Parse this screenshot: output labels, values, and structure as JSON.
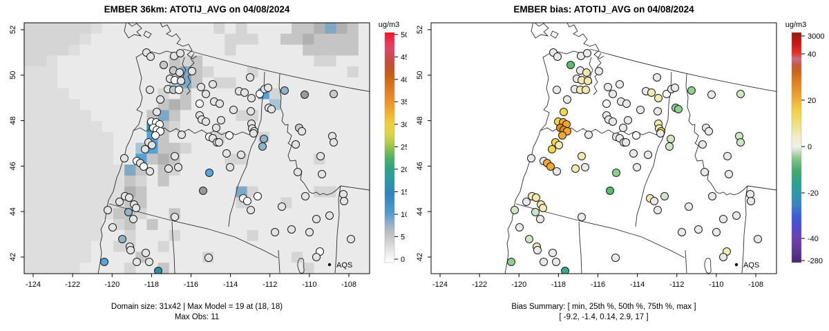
{
  "page": {
    "background": "#ffffff"
  },
  "legend": {
    "aqs_label": "AQS"
  },
  "chart_data": {
    "type": "map-scatter-pair",
    "axes": {
      "x_ticks": [
        "-124",
        "-122",
        "-120",
        "-118",
        "-116",
        "-114",
        "-112",
        "-110",
        "-108"
      ],
      "y_ticks": [
        "52",
        "50",
        "48",
        "46",
        "44",
        "42"
      ],
      "x_range": [
        -124,
        -108
      ],
      "y_range": [
        42,
        52
      ],
      "grid": false
    },
    "panels": [
      {
        "id": "model",
        "title": "EMBER 36km: ATOTIJ_AVG on 04/08/2024",
        "caption_line1": "Domain size: 31x42 | Max Model = 19 at (18, 18)",
        "caption_line2": "Max Obs: 11",
        "has_raster": true,
        "marker_field": 2,
        "colorbar": {
          "title": "ug/m3",
          "ticks": [
            {
              "label": "0",
              "f": 0.015
            },
            {
              "label": "5",
              "f": 0.113
            },
            {
              "label": "10",
              "f": 0.21
            },
            {
              "label": "15",
              "f": 0.308
            },
            {
              "label": "20",
              "f": 0.406
            },
            {
              "label": "25",
              "f": 0.503
            },
            {
              "label": "30",
              "f": 0.601
            },
            {
              "label": "35",
              "f": 0.699
            },
            {
              "label": "40",
              "f": 0.796
            },
            {
              "label": "45",
              "f": 0.894
            },
            {
              "label": "50",
              "f": 0.991
            }
          ],
          "stops": [
            {
              "f": 0,
              "c": "#ffffff"
            },
            {
              "f": 0.04,
              "c": "#ececec"
            },
            {
              "f": 0.1,
              "c": "#cccccc"
            },
            {
              "f": 0.14,
              "c": "#b0bcc4"
            },
            {
              "f": 0.18,
              "c": "#86abc9"
            },
            {
              "f": 0.21,
              "c": "#569dd2"
            },
            {
              "f": 0.26,
              "c": "#3e8ec8"
            },
            {
              "f": 0.3,
              "c": "#3083bd"
            },
            {
              "f": 0.33,
              "c": "#2c90b0"
            },
            {
              "f": 0.37,
              "c": "#2d9d9b"
            },
            {
              "f": 0.41,
              "c": "#2ea486"
            },
            {
              "f": 0.45,
              "c": "#49ae69"
            },
            {
              "f": 0.49,
              "c": "#84bd53"
            },
            {
              "f": 0.52,
              "c": "#b2cb4a"
            },
            {
              "f": 0.56,
              "c": "#dcd448"
            },
            {
              "f": 0.6,
              "c": "#eed03c"
            },
            {
              "f": 0.63,
              "c": "#f0bd35"
            },
            {
              "f": 0.67,
              "c": "#efa42d"
            },
            {
              "f": 0.71,
              "c": "#e98d26"
            },
            {
              "f": 0.75,
              "c": "#e07c20"
            },
            {
              "f": 0.79,
              "c": "#d26a1b"
            },
            {
              "f": 0.81,
              "c": "#c86018"
            },
            {
              "f": 0.85,
              "c": "#c1512d"
            },
            {
              "f": 0.89,
              "c": "#cb4850"
            },
            {
              "f": 0.93,
              "c": "#de4568"
            },
            {
              "f": 0.96,
              "c": "#ec3455"
            },
            {
              "f": 1,
              "c": "#fa0f20"
            }
          ]
        }
      },
      {
        "id": "bias",
        "title": "EMBER bias: ATOTIJ_AVG on 04/08/2024",
        "caption_line1": "Bias Summary: [ min, 25th %, 50th %, 75th %, max ]",
        "caption_line2": "[ -9.2,  -1.4,  0.14,  2.9,  17 ]",
        "has_raster": false,
        "marker_field": 3,
        "bias_summary": [
          -9.2,
          -1.4,
          0.14,
          2.9,
          17
        ],
        "colorbar": {
          "title": "ug/m3",
          "ticks": [
            {
              "label": "-280",
              "f": 0.009
            },
            {
              "label": "-40",
              "f": 0.105
            },
            {
              "label": "-20",
              "f": 0.303
            },
            {
              "label": "0",
              "f": 0.504
            },
            {
              "label": "20",
              "f": 0.706
            },
            {
              "label": "40",
              "f": 0.907
            },
            {
              "label": "3000",
              "f": 0.985
            }
          ],
          "stops": [
            {
              "f": 0,
              "c": "#4a2878"
            },
            {
              "f": 0.05,
              "c": "#5d3592"
            },
            {
              "f": 0.105,
              "c": "#7040ae"
            },
            {
              "f": 0.15,
              "c": "#5248cc"
            },
            {
              "f": 0.2,
              "c": "#3a5ed8"
            },
            {
              "f": 0.25,
              "c": "#3b83c6"
            },
            {
              "f": 0.3,
              "c": "#2f99a9"
            },
            {
              "f": 0.35,
              "c": "#2ea28c"
            },
            {
              "f": 0.4,
              "c": "#43aa6d"
            },
            {
              "f": 0.45,
              "c": "#85c285"
            },
            {
              "f": 0.48,
              "c": "#c3dcc0"
            },
            {
              "f": 0.504,
              "c": "#f0f0ec"
            },
            {
              "f": 0.55,
              "c": "#f2ecc4"
            },
            {
              "f": 0.59,
              "c": "#f0e292"
            },
            {
              "f": 0.63,
              "c": "#f1d95e"
            },
            {
              "f": 0.67,
              "c": "#f2cb43"
            },
            {
              "f": 0.71,
              "c": "#f0ad33"
            },
            {
              "f": 0.75,
              "c": "#e89426"
            },
            {
              "f": 0.79,
              "c": "#dd7d1e"
            },
            {
              "f": 0.83,
              "c": "#cd641a"
            },
            {
              "f": 0.86,
              "c": "#c25a42"
            },
            {
              "f": 0.885,
              "c": "#c76d88"
            },
            {
              "f": 0.91,
              "c": "#e43326"
            },
            {
              "f": 0.95,
              "c": "#cf1713"
            },
            {
              "f": 1,
              "c": "#8f1d15"
            }
          ]
        }
      }
    ],
    "palettes": {
      "obs": {
        "w": "#ffffff",
        "lg": "#e4e4e4",
        "g": "#c9c9c9",
        "dg": "#9a9a9a",
        "bg": "#8fb3c9",
        "bl": "#58a5d8",
        "tl": "#2e8fa0"
      },
      "bias": {
        "w": "#ffffff",
        "lg": "#e9e9e9",
        "py": "#f0e9b0",
        "y": "#f2d94b",
        "o": "#f2a72e",
        "do": "#e68a1a",
        "lgn": "#cde6c4",
        "mg": "#8fd08f",
        "dgn": "#5cbb6c",
        "tg": "#3aa88f"
      }
    },
    "raster": {
      "palette": {
        ".": "#eaeaea",
        "o": "#dedede",
        "1": "#d5d5d5",
        "2": "#c5c5c5",
        "3": "#b1b1b1",
        "b": "#7fa8c4",
        "B": "#54a3d8",
        "T": "#2f8fa3",
        "L": "#a9c4d6"
      },
      "rows": [
        "111111o..........1.1....223b32.",
        "11111o............111..2232222.",
        "1111o.............1......22222.",
        "11o..........212..........11...",
        "ooo..........2b21...1........1.",
        "ooo..........Lb2.11............",
        "oooo........1.2......B1........",
        "ooooo.......232.......L........",
        "oooooo.....2b2.....11..........",
        "ooooooo....T21.................",
        "oooooooo...B2....1...1.........",
        "oooooooo..LB221................",
        "oooooooo..B232....11......1....",
        "ooooooooob2.21.................",
        "ooooooooo21.2..................",
        "ooooooooo32........b1.....11...",
        "ooooooooo22........1...1.......",
        "oooooooo221..2.................",
        "ooooooo.12.2...................",
        "ooooooo..1...1......1..........",
        "oooooo..11..1..................",
        "oooooo....2.....1.......1......",
        "ooooo....1..2............1....."
      ]
    },
    "stations": [
      [
        177,
        43,
        "lg",
        "lg"
      ],
      [
        183,
        49,
        "lg",
        "lg"
      ],
      [
        202,
        61,
        "g",
        "dgn"
      ],
      [
        217,
        48,
        "lg",
        "lg"
      ],
      [
        226,
        44,
        "lg",
        "lg"
      ],
      [
        216,
        69,
        "g",
        "lg"
      ],
      [
        225,
        72,
        "lg",
        "py"
      ],
      [
        243,
        70,
        "lg",
        "lg"
      ],
      [
        211,
        81,
        "lg",
        "lg"
      ],
      [
        218,
        83,
        "w",
        "py"
      ],
      [
        227,
        84,
        "lg",
        "py"
      ],
      [
        208,
        96,
        "lg",
        "lg"
      ],
      [
        216,
        97,
        "g",
        "py"
      ],
      [
        224,
        97,
        "w",
        "py"
      ],
      [
        182,
        97,
        "lg",
        "lg"
      ],
      [
        197,
        111,
        "lg",
        "lg"
      ],
      [
        192,
        129,
        "lg",
        "y"
      ],
      [
        184,
        143,
        "w",
        "y"
      ],
      [
        191,
        144,
        "w",
        "o"
      ],
      [
        196,
        147,
        "w",
        "o"
      ],
      [
        187,
        152,
        "w",
        "do"
      ],
      [
        192,
        155,
        "w",
        "do"
      ],
      [
        197,
        157,
        "w",
        "o"
      ],
      [
        190,
        163,
        "w",
        "o"
      ],
      [
        180,
        173,
        "lg",
        "y"
      ],
      [
        185,
        177,
        "lg",
        "py"
      ],
      [
        175,
        183,
        "lg",
        "y"
      ],
      [
        163,
        200,
        "w",
        "lg"
      ],
      [
        168,
        203,
        "lg",
        "o"
      ],
      [
        173,
        208,
        "w",
        "o"
      ],
      [
        182,
        215,
        "lg",
        "lg"
      ],
      [
        145,
        196,
        "lg",
        "lg"
      ],
      [
        228,
        162,
        "lg",
        "lg"
      ],
      [
        218,
        193,
        "lg",
        "py"
      ],
      [
        209,
        211,
        "lg",
        "py"
      ],
      [
        223,
        209,
        "lg",
        "lg"
      ],
      [
        268,
        165,
        "w",
        "lg"
      ],
      [
        273,
        167,
        "lg",
        "lg"
      ],
      [
        279,
        173,
        "lg",
        "lg"
      ],
      [
        297,
        163,
        "w",
        "w"
      ],
      [
        293,
        189,
        "lg",
        "lg"
      ],
      [
        314,
        191,
        "lg",
        "lg"
      ],
      [
        268,
        217,
        "bl",
        "mg"
      ],
      [
        259,
        243,
        "dg",
        "dgn"
      ],
      [
        298,
        209,
        "lg",
        "lg"
      ],
      [
        256,
        93,
        "lg",
        "lg"
      ],
      [
        263,
        103,
        "lg",
        "lg"
      ],
      [
        273,
        89,
        "lg",
        "lg"
      ],
      [
        275,
        114,
        "lg",
        "lg"
      ],
      [
        283,
        117,
        "lg",
        "lg"
      ],
      [
        254,
        117,
        "w",
        "w"
      ],
      [
        254,
        134,
        "lg",
        "lg"
      ],
      [
        257,
        140,
        "lg",
        "lg"
      ],
      [
        263,
        143,
        "lg",
        "lg"
      ],
      [
        285,
        141,
        "lg",
        "lg"
      ],
      [
        278,
        152,
        "lg",
        "lg"
      ],
      [
        282,
        173,
        "lg",
        "lg"
      ],
      [
        303,
        126,
        "lg",
        "lg"
      ],
      [
        311,
        99,
        "lg",
        "lg"
      ],
      [
        319,
        101,
        "lg",
        "py"
      ],
      [
        327,
        79,
        "lg",
        "lg"
      ],
      [
        329,
        109,
        "lg",
        "py"
      ],
      [
        328,
        128,
        "lg",
        "lg"
      ],
      [
        329,
        146,
        "lg",
        "py"
      ],
      [
        330,
        153,
        "lg",
        "py"
      ],
      [
        333,
        157,
        "lg",
        "y"
      ],
      [
        332,
        160,
        "lg",
        "lg"
      ],
      [
        341,
        103,
        "w",
        "w"
      ],
      [
        348,
        96,
        "lg",
        "lg"
      ],
      [
        353,
        94,
        "lg",
        "lg"
      ],
      [
        354,
        123,
        "lg",
        "mg"
      ],
      [
        358,
        125,
        "lg",
        "mg"
      ],
      [
        377,
        98,
        "bg",
        "mg"
      ],
      [
        347,
        168,
        "bg",
        "lgn"
      ],
      [
        345,
        179,
        "bg",
        "lgn"
      ],
      [
        398,
        152,
        "g",
        "lg"
      ],
      [
        402,
        157,
        "lg",
        "lg"
      ],
      [
        406,
        104,
        "dg",
        "lg"
      ],
      [
        393,
        176,
        "lg",
        "lg"
      ],
      [
        396,
        216,
        "lg",
        "lg"
      ],
      [
        407,
        251,
        "lg",
        "lg"
      ],
      [
        429,
        193,
        "lg",
        "lg"
      ],
      [
        448,
        103,
        "g",
        "lgn"
      ],
      [
        446,
        164,
        "lg",
        "lgn"
      ],
      [
        448,
        173,
        "lg",
        "lgn"
      ],
      [
        431,
        219,
        "lg",
        "lg"
      ],
      [
        462,
        248,
        "lg",
        "lg"
      ],
      [
        463,
        258,
        "lg",
        "lg"
      ],
      [
        423,
        284,
        "lg",
        "lg"
      ],
      [
        413,
        303,
        "lg",
        "lg"
      ],
      [
        428,
        331,
        "w",
        "py"
      ],
      [
        423,
        339,
        "lg",
        "lg"
      ],
      [
        473,
        313,
        "lg",
        "lg"
      ],
      [
        338,
        251,
        "w",
        "lgn"
      ],
      [
        317,
        254,
        "w",
        "py"
      ],
      [
        323,
        258,
        "w",
        "lg"
      ],
      [
        373,
        266,
        "lg",
        "lg"
      ],
      [
        363,
        303,
        "lg",
        "lg"
      ],
      [
        146,
        251,
        "lg",
        "py"
      ],
      [
        152,
        253,
        "lg",
        "py"
      ],
      [
        159,
        263,
        "lg",
        "py"
      ],
      [
        162,
        268,
        "lg",
        "py"
      ],
      [
        138,
        259,
        "lg",
        "lg"
      ],
      [
        121,
        271,
        "lg",
        "lgn"
      ],
      [
        151,
        274,
        "bg",
        "lgn"
      ],
      [
        158,
        284,
        "lg",
        "lg"
      ],
      [
        128,
        296,
        "lg",
        "lg"
      ],
      [
        142,
        313,
        "bg",
        "lgn"
      ],
      [
        153,
        324,
        "lg",
        "py"
      ],
      [
        154,
        329,
        "lg",
        "lg"
      ],
      [
        176,
        333,
        "lg",
        "lg"
      ],
      [
        116,
        346,
        "bl",
        "mg"
      ],
      [
        163,
        346,
        "lg",
        "lg"
      ],
      [
        181,
        346,
        "lg",
        "lg"
      ],
      [
        194,
        359,
        "tl",
        "tg"
      ],
      [
        218,
        281,
        "lg",
        "lg"
      ],
      [
        267,
        340,
        "lg",
        "lg"
      ],
      [
        328,
        271,
        "lg",
        "lg"
      ],
      [
        387,
        299,
        "lg",
        "lg"
      ],
      [
        442,
        279,
        "lg",
        "lg"
      ]
    ]
  }
}
